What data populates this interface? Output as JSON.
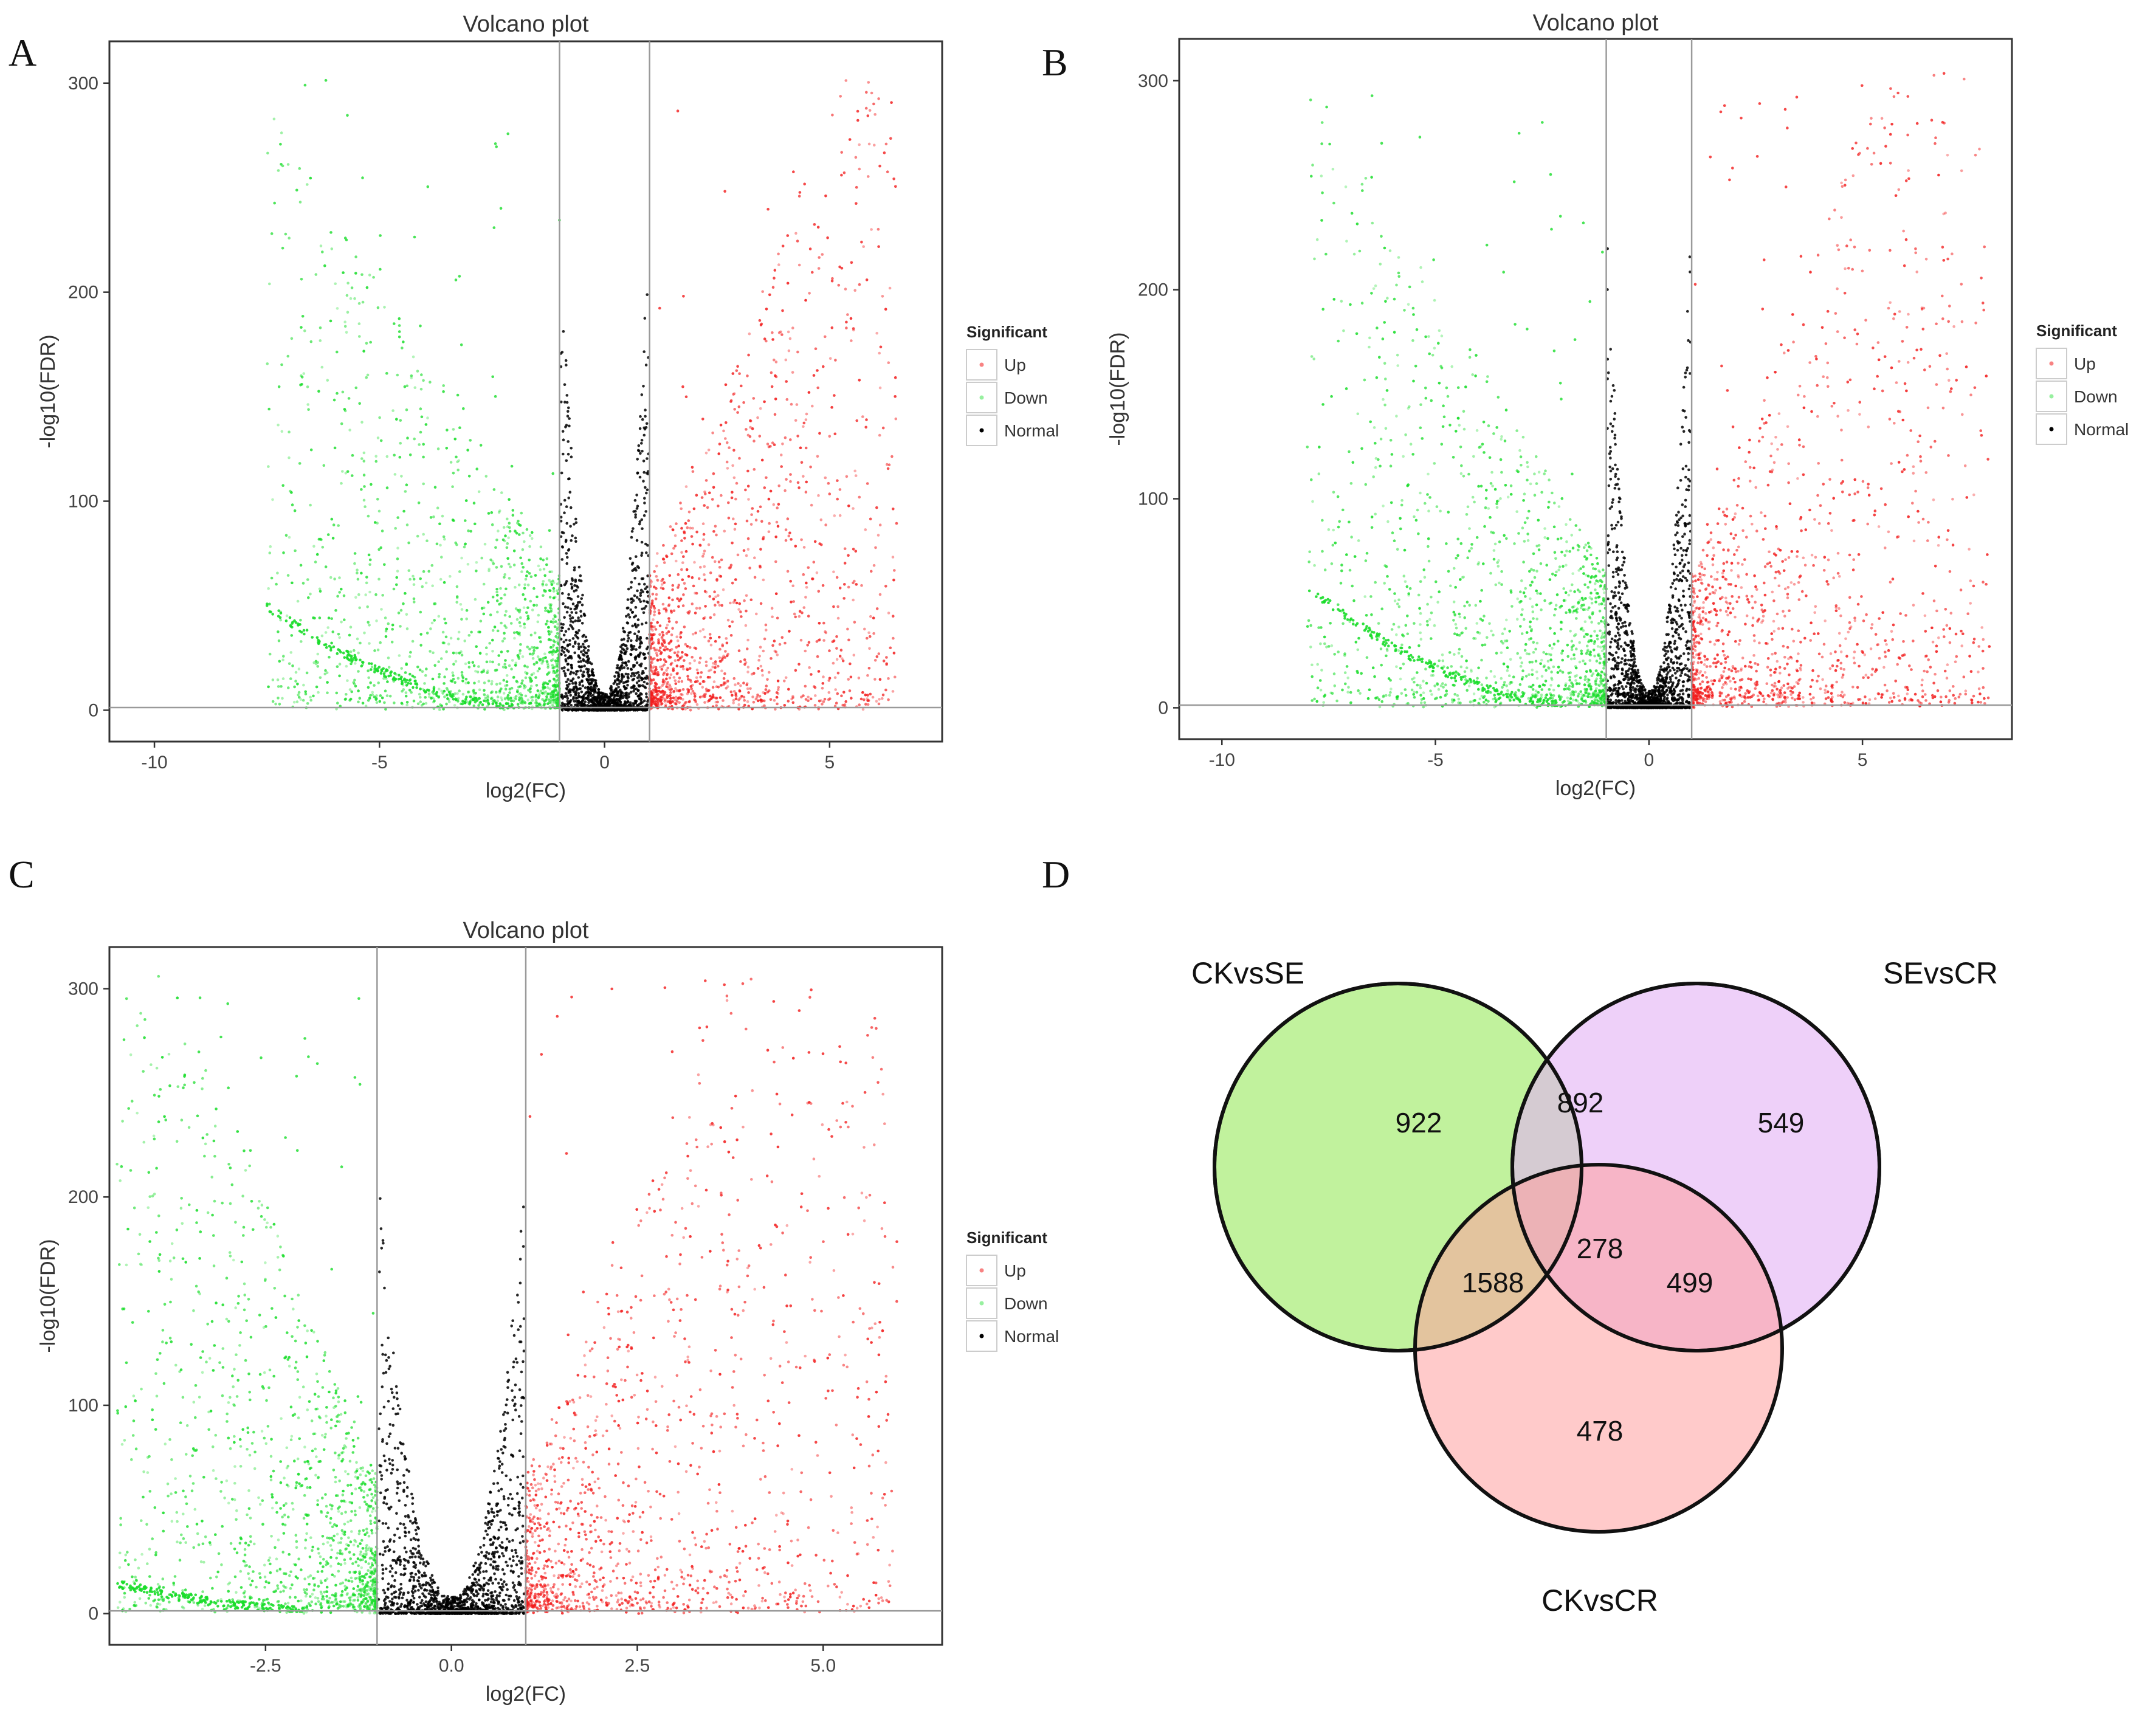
{
  "figure": {
    "panel_letters": [
      "A",
      "B",
      "C",
      "D"
    ]
  },
  "colors": {
    "up": "#f21c1c",
    "down": "#19dd2a",
    "normal": "#000000",
    "venn_ckvsse": "#b6f08c",
    "venn_sevscr": "#e2b1f5",
    "venn_ckvscr": "#ff9f9f"
  },
  "chart_data": [
    {
      "panel": "A",
      "type": "scatter",
      "subtype": "volcano",
      "title": "Volcano plot",
      "xlabel": "log2(FC)",
      "ylabel": "-log10(FDR)",
      "xlim": [
        -11,
        7.5
      ],
      "ylim": [
        -15,
        320
      ],
      "xticks": [
        -10,
        -5,
        0,
        5
      ],
      "xtick_labels": [
        "-10",
        "-5",
        "0",
        "5"
      ],
      "yticks": [
        0,
        100,
        200,
        300
      ],
      "ytick_labels": [
        "0",
        "100",
        "200",
        "300"
      ],
      "fc_threshold": [
        -1,
        1
      ],
      "fdr_threshold": 1.3,
      "down_extent": -7.5,
      "up_extent": 6.5,
      "legend": {
        "title": "Significant",
        "entries": [
          "Up",
          "Down",
          "Normal"
        ]
      }
    },
    {
      "panel": "B",
      "type": "scatter",
      "subtype": "volcano",
      "title": "Volcano plot",
      "xlabel": "log2(FC)",
      "ylabel": "-log10(FDR)",
      "xlim": [
        -11,
        8.5
      ],
      "ylim": [
        -15,
        320
      ],
      "xticks": [
        -10,
        -5,
        0,
        5
      ],
      "xtick_labels": [
        "-10",
        "-5",
        "0",
        "5"
      ],
      "yticks": [
        0,
        100,
        200,
        300
      ],
      "ytick_labels": [
        "0",
        "100",
        "200",
        "300"
      ],
      "fc_threshold": [
        -1,
        1
      ],
      "fdr_threshold": 1.3,
      "down_extent": -8,
      "up_extent": 8,
      "legend": {
        "title": "Significant",
        "entries": [
          "Up",
          "Down",
          "Normal"
        ]
      }
    },
    {
      "panel": "C",
      "type": "scatter",
      "subtype": "volcano",
      "title": "Volcano plot",
      "xlabel": "log2(FC)",
      "ylabel": "-log10(FDR)",
      "xlim": [
        -4.6,
        6.6
      ],
      "ylim": [
        -15,
        320
      ],
      "xticks": [
        -2.5,
        0,
        2.5,
        5
      ],
      "xtick_labels": [
        "-2.5",
        "0.0",
        "2.5",
        "5.0"
      ],
      "yticks": [
        0,
        100,
        200,
        300
      ],
      "ytick_labels": [
        "0",
        "100",
        "200",
        "300"
      ],
      "fc_threshold": [
        -1,
        1
      ],
      "fdr_threshold": 1.3,
      "down_extent": -4.5,
      "up_extent": 6,
      "legend": {
        "title": "Significant",
        "entries": [
          "Up",
          "Down",
          "Normal"
        ]
      }
    },
    {
      "panel": "D",
      "type": "venn",
      "sets": [
        "CKvsSE",
        "SEvsCR",
        "CKvsCR"
      ],
      "regions": {
        "CKvsSE_only": 922,
        "SEvsCR_only": 549,
        "CKvsCR_only": 478,
        "CKvsSE_SEvsCR": 892,
        "CKvsSE_CKvsCR": 1588,
        "SEvsCR_CKvsCR": 499,
        "all": 278
      }
    }
  ]
}
